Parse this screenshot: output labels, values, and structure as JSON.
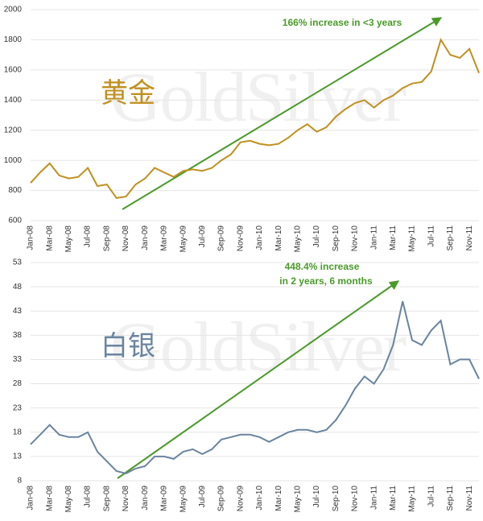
{
  "chart_data": [
    {
      "type": "line",
      "title": "黄金",
      "watermark": "GoldSilver",
      "annotation": [
        "166% increase in <3 years"
      ],
      "categories": [
        "Jan-08",
        null,
        "Mar-08",
        null,
        "May-08",
        null,
        "Jul-08",
        null,
        "Sep-08",
        null,
        "Nov-08",
        null,
        "Jan-09",
        null,
        "Mar-09",
        null,
        "May-09",
        null,
        "Jul-09",
        null,
        "Sep-09",
        null,
        "Nov-09",
        null,
        "Jan-10",
        null,
        "Mar-10",
        null,
        "May-10",
        null,
        "Jul-10",
        null,
        "Sep-10",
        null,
        "Nov-10",
        null,
        "Jan-11",
        null,
        "Mar-11",
        null,
        "May-11",
        null,
        "Jul-11",
        null,
        "Sep-11",
        null,
        "Nov-11",
        null
      ],
      "values": [
        850,
        920,
        980,
        900,
        880,
        890,
        950,
        830,
        840,
        750,
        760,
        840,
        880,
        950,
        920,
        890,
        930,
        940,
        930,
        950,
        1000,
        1040,
        1120,
        1130,
        1110,
        1100,
        1110,
        1150,
        1200,
        1240,
        1190,
        1220,
        1290,
        1340,
        1380,
        1400,
        1350,
        1400,
        1430,
        1480,
        1510,
        1520,
        1590,
        1800,
        1700,
        1680,
        1740,
        1580
      ],
      "color": "#c09020",
      "ylim": [
        600,
        2000
      ],
      "yticks": [
        600,
        800,
        1000,
        1200,
        1400,
        1600,
        1800,
        2000
      ],
      "grid": true
    },
    {
      "type": "line",
      "title": "白银",
      "watermark": "GoldSilver",
      "annotation": [
        "448.4% increase",
        "in 2 years, 6 months"
      ],
      "categories": [
        "Jan-08",
        null,
        "Mar-08",
        null,
        "May-08",
        null,
        "Jul-08",
        null,
        "Sep-08",
        null,
        "Nov-08",
        null,
        "Jan-09",
        null,
        "Mar-09",
        null,
        "May-09",
        null,
        "Jul-09",
        null,
        "Sep-09",
        null,
        "Nov-09",
        null,
        "Jan-10",
        null,
        "Mar-10",
        null,
        "May-10",
        null,
        "Jul-10",
        null,
        "Sep-10",
        null,
        "Nov-10",
        null,
        "Jan-11",
        null,
        "Mar-11",
        null,
        "May-11",
        null,
        "Jul-11",
        null,
        "Sep-11",
        null,
        "Nov-11",
        null
      ],
      "values": [
        15.5,
        17.5,
        19.5,
        17.5,
        17,
        17,
        18,
        14,
        12,
        10,
        9.5,
        10.5,
        11,
        13,
        13,
        12.5,
        14,
        14.5,
        13.5,
        14.5,
        16.5,
        17,
        17.5,
        17.5,
        17,
        16,
        17,
        18,
        18.5,
        18.5,
        18,
        18.5,
        20.5,
        23.5,
        27,
        29.5,
        28,
        31,
        36,
        45,
        37,
        36,
        39,
        41,
        32,
        33,
        33,
        29
      ],
      "color": "#6a84a0",
      "ylim": [
        8,
        53
      ],
      "yticks": [
        8,
        13,
        18,
        23,
        28,
        33,
        38,
        43,
        48,
        53
      ],
      "grid": true
    }
  ]
}
